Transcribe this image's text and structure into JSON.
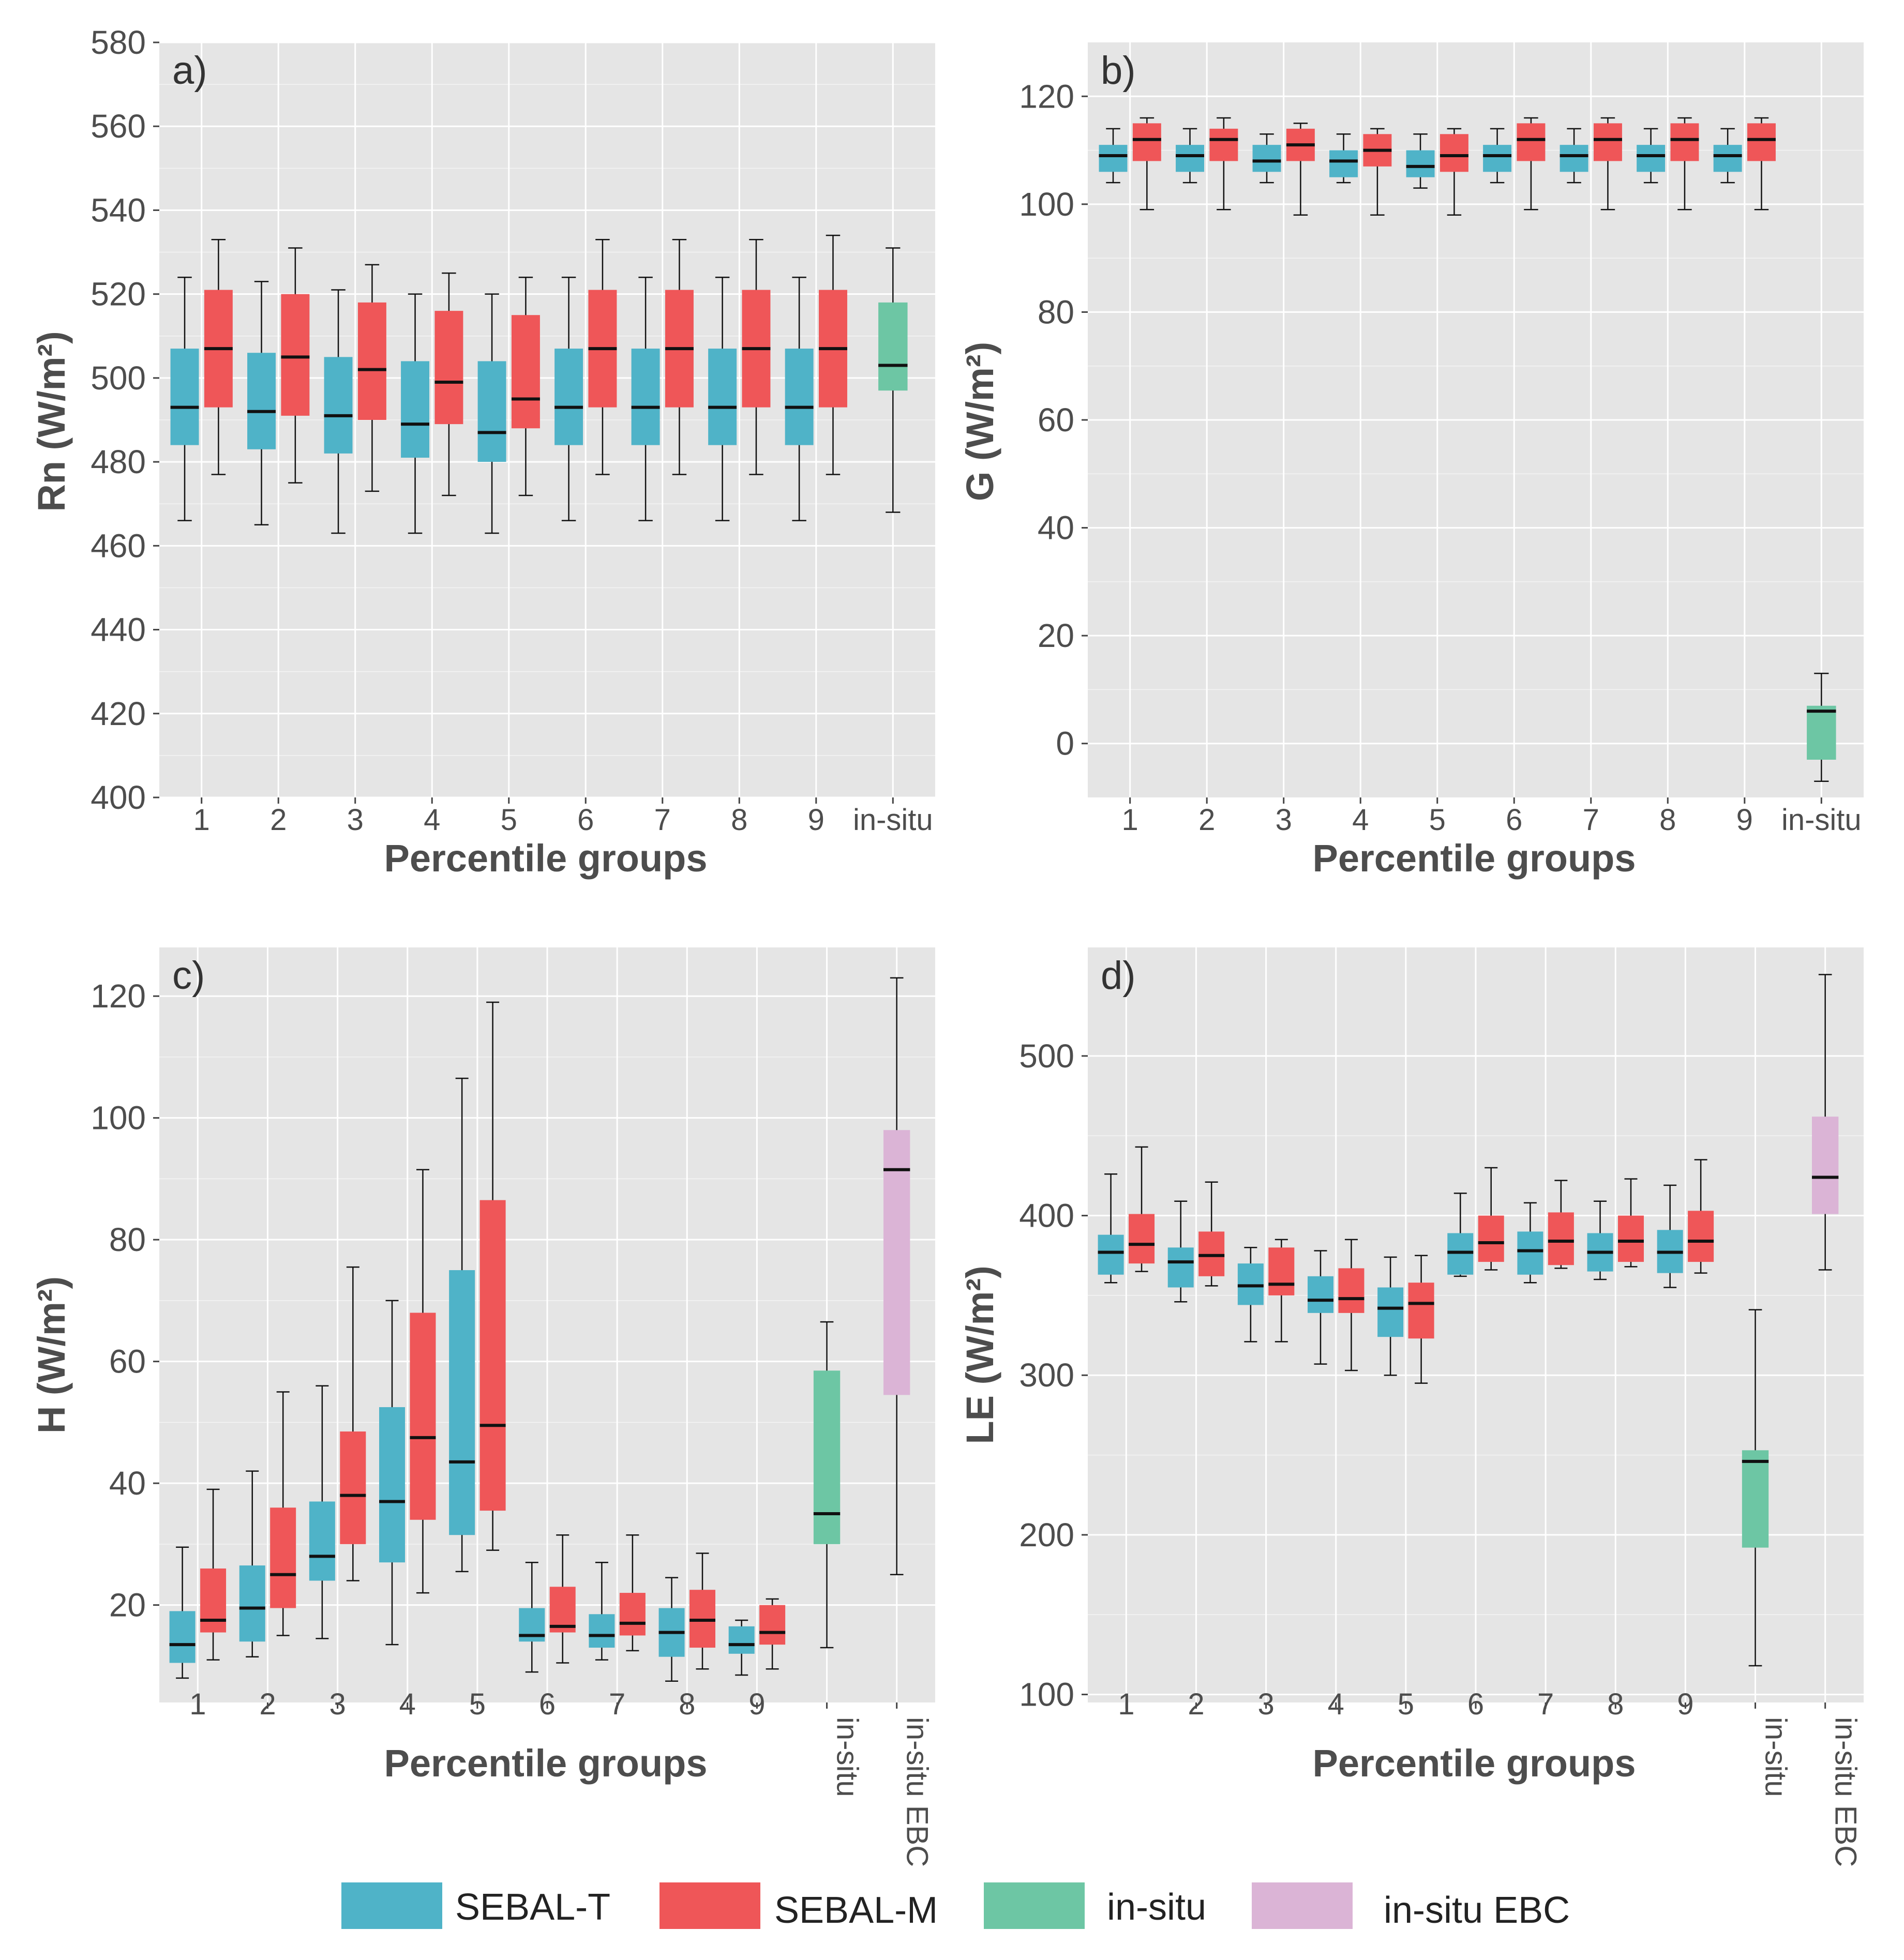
{
  "colors": {
    "SEBAL-T": "#4fb3c8",
    "SEBAL-M": "#ef5658",
    "in-situ": "#6dc6a4",
    "in-situ EBC": "#dbb4d6",
    "panel_bg": "#e5e5e5",
    "grid": "#ffffff",
    "median": "#111111",
    "whisker": "#111111"
  },
  "legend": [
    {
      "label": "SEBAL-T",
      "color_key": "SEBAL-T"
    },
    {
      "label": "SEBAL-M",
      "color_key": "SEBAL-M"
    },
    {
      "label": "in-situ",
      "color_key": "in-situ"
    },
    {
      "label": "in-situ EBC",
      "color_key": "in-situ EBC"
    }
  ],
  "chart_data": [
    {
      "type": "boxplot",
      "panel": "a)",
      "ylabel": "Rn (W/m²)",
      "xlabel": "Percentile groups",
      "ylim": [
        400,
        580
      ],
      "yticks": [
        400,
        420,
        440,
        460,
        480,
        500,
        520,
        540,
        560,
        580
      ],
      "categories": [
        "1",
        "2",
        "3",
        "4",
        "5",
        "6",
        "7",
        "8",
        "9",
        "in-situ"
      ],
      "rotated_labels": false,
      "boxes": [
        {
          "group": "1",
          "series": "SEBAL-T",
          "min": 466,
          "q1": 484,
          "median": 493,
          "q3": 507,
          "max": 524
        },
        {
          "group": "1",
          "series": "SEBAL-M",
          "min": 477,
          "q1": 493,
          "median": 507,
          "q3": 521,
          "max": 533
        },
        {
          "group": "2",
          "series": "SEBAL-T",
          "min": 465,
          "q1": 483,
          "median": 492,
          "q3": 506,
          "max": 523
        },
        {
          "group": "2",
          "series": "SEBAL-M",
          "min": 475,
          "q1": 491,
          "median": 505,
          "q3": 520,
          "max": 531
        },
        {
          "group": "3",
          "series": "SEBAL-T",
          "min": 463,
          "q1": 482,
          "median": 491,
          "q3": 505,
          "max": 521
        },
        {
          "group": "3",
          "series": "SEBAL-M",
          "min": 473,
          "q1": 490,
          "median": 502,
          "q3": 518,
          "max": 527
        },
        {
          "group": "4",
          "series": "SEBAL-T",
          "min": 463,
          "q1": 481,
          "median": 489,
          "q3": 504,
          "max": 520
        },
        {
          "group": "4",
          "series": "SEBAL-M",
          "min": 472,
          "q1": 489,
          "median": 499,
          "q3": 516,
          "max": 525
        },
        {
          "group": "5",
          "series": "SEBAL-T",
          "min": 463,
          "q1": 480,
          "median": 487,
          "q3": 504,
          "max": 520
        },
        {
          "group": "5",
          "series": "SEBAL-M",
          "min": 472,
          "q1": 488,
          "median": 495,
          "q3": 515,
          "max": 524
        },
        {
          "group": "6",
          "series": "SEBAL-T",
          "min": 466,
          "q1": 484,
          "median": 493,
          "q3": 507,
          "max": 524
        },
        {
          "group": "6",
          "series": "SEBAL-M",
          "min": 477,
          "q1": 493,
          "median": 507,
          "q3": 521,
          "max": 533
        },
        {
          "group": "7",
          "series": "SEBAL-T",
          "min": 466,
          "q1": 484,
          "median": 493,
          "q3": 507,
          "max": 524
        },
        {
          "group": "7",
          "series": "SEBAL-M",
          "min": 477,
          "q1": 493,
          "median": 507,
          "q3": 521,
          "max": 533
        },
        {
          "group": "8",
          "series": "SEBAL-T",
          "min": 466,
          "q1": 484,
          "median": 493,
          "q3": 507,
          "max": 524
        },
        {
          "group": "8",
          "series": "SEBAL-M",
          "min": 477,
          "q1": 493,
          "median": 507,
          "q3": 521,
          "max": 533
        },
        {
          "group": "9",
          "series": "SEBAL-T",
          "min": 466,
          "q1": 484,
          "median": 493,
          "q3": 507,
          "max": 524
        },
        {
          "group": "9",
          "series": "SEBAL-M",
          "min": 477,
          "q1": 493,
          "median": 507,
          "q3": 521,
          "max": 534
        },
        {
          "group": "in-situ",
          "series": "in-situ",
          "min": 468,
          "q1": 497,
          "median": 503,
          "q3": 518,
          "max": 531
        }
      ]
    },
    {
      "type": "boxplot",
      "panel": "b)",
      "ylabel": "G (W/m²)",
      "xlabel": "Percentile groups",
      "ylim": [
        -10,
        130
      ],
      "yticks": [
        0,
        20,
        40,
        60,
        80,
        100,
        120
      ],
      "categories": [
        "1",
        "2",
        "3",
        "4",
        "5",
        "6",
        "7",
        "8",
        "9",
        "in-situ"
      ],
      "rotated_labels": false,
      "boxes": [
        {
          "group": "1",
          "series": "SEBAL-T",
          "min": 104,
          "q1": 106,
          "median": 109,
          "q3": 111,
          "max": 114
        },
        {
          "group": "1",
          "series": "SEBAL-M",
          "min": 99,
          "q1": 108,
          "median": 112,
          "q3": 115,
          "max": 116
        },
        {
          "group": "2",
          "series": "SEBAL-T",
          "min": 104,
          "q1": 106,
          "median": 109,
          "q3": 111,
          "max": 114
        },
        {
          "group": "2",
          "series": "SEBAL-M",
          "min": 99,
          "q1": 108,
          "median": 112,
          "q3": 114,
          "max": 116
        },
        {
          "group": "3",
          "series": "SEBAL-T",
          "min": 104,
          "q1": 106,
          "median": 108,
          "q3": 111,
          "max": 113
        },
        {
          "group": "3",
          "series": "SEBAL-M",
          "min": 98,
          "q1": 108,
          "median": 111,
          "q3": 114,
          "max": 115
        },
        {
          "group": "4",
          "series": "SEBAL-T",
          "min": 104,
          "q1": 105,
          "median": 108,
          "q3": 110,
          "max": 113
        },
        {
          "group": "4",
          "series": "SEBAL-M",
          "min": 98,
          "q1": 107,
          "median": 110,
          "q3": 113,
          "max": 114
        },
        {
          "group": "5",
          "series": "SEBAL-T",
          "min": 103,
          "q1": 105,
          "median": 107,
          "q3": 110,
          "max": 113
        },
        {
          "group": "5",
          "series": "SEBAL-M",
          "min": 98,
          "q1": 106,
          "median": 109,
          "q3": 113,
          "max": 114
        },
        {
          "group": "6",
          "series": "SEBAL-T",
          "min": 104,
          "q1": 106,
          "median": 109,
          "q3": 111,
          "max": 114
        },
        {
          "group": "6",
          "series": "SEBAL-M",
          "min": 99,
          "q1": 108,
          "median": 112,
          "q3": 115,
          "max": 116
        },
        {
          "group": "7",
          "series": "SEBAL-T",
          "min": 104,
          "q1": 106,
          "median": 109,
          "q3": 111,
          "max": 114
        },
        {
          "group": "7",
          "series": "SEBAL-M",
          "min": 99,
          "q1": 108,
          "median": 112,
          "q3": 115,
          "max": 116
        },
        {
          "group": "8",
          "series": "SEBAL-T",
          "min": 104,
          "q1": 106,
          "median": 109,
          "q3": 111,
          "max": 114
        },
        {
          "group": "8",
          "series": "SEBAL-M",
          "min": 99,
          "q1": 108,
          "median": 112,
          "q3": 115,
          "max": 116
        },
        {
          "group": "9",
          "series": "SEBAL-T",
          "min": 104,
          "q1": 106,
          "median": 109,
          "q3": 111,
          "max": 114
        },
        {
          "group": "9",
          "series": "SEBAL-M",
          "min": 99,
          "q1": 108,
          "median": 112,
          "q3": 115,
          "max": 116
        },
        {
          "group": "in-situ",
          "series": "in-situ",
          "min": -7,
          "q1": -3,
          "median": 6,
          "q3": 7,
          "max": 13
        }
      ]
    },
    {
      "type": "boxplot",
      "panel": "c)",
      "ylabel": "H (W/m²)",
      "xlabel": "Percentile groups",
      "ylim": [
        4,
        128
      ],
      "yticks": [
        20,
        40,
        60,
        80,
        100,
        120
      ],
      "categories": [
        "1",
        "2",
        "3",
        "4",
        "5",
        "6",
        "7",
        "8",
        "9",
        "in-situ",
        "in-situ EBC"
      ],
      "rotated_labels": true,
      "boxes": [
        {
          "group": "1",
          "series": "SEBAL-T",
          "min": 8,
          "q1": 10.5,
          "median": 13.5,
          "q3": 19,
          "max": 29.5
        },
        {
          "group": "1",
          "series": "SEBAL-M",
          "min": 11,
          "q1": 15.5,
          "median": 17.5,
          "q3": 26,
          "max": 39
        },
        {
          "group": "2",
          "series": "SEBAL-T",
          "min": 11.5,
          "q1": 14,
          "median": 19.5,
          "q3": 26.5,
          "max": 42
        },
        {
          "group": "2",
          "series": "SEBAL-M",
          "min": 15,
          "q1": 19.5,
          "median": 25,
          "q3": 36,
          "max": 55
        },
        {
          "group": "3",
          "series": "SEBAL-T",
          "min": 14.5,
          "q1": 24,
          "median": 28,
          "q3": 37,
          "max": 56
        },
        {
          "group": "3",
          "series": "SEBAL-M",
          "min": 24,
          "q1": 30,
          "median": 38,
          "q3": 48.5,
          "max": 75.5
        },
        {
          "group": "4",
          "series": "SEBAL-T",
          "min": 13.5,
          "q1": 27,
          "median": 37,
          "q3": 52.5,
          "max": 70
        },
        {
          "group": "4",
          "series": "SEBAL-M",
          "min": 22,
          "q1": 34,
          "median": 47.5,
          "q3": 68,
          "max": 91.5
        },
        {
          "group": "5",
          "series": "SEBAL-T",
          "min": 25.5,
          "q1": 31.5,
          "median": 43.5,
          "q3": 75,
          "max": 106.5
        },
        {
          "group": "5",
          "series": "SEBAL-M",
          "min": 29,
          "q1": 35.5,
          "median": 49.5,
          "q3": 86.5,
          "max": 119
        },
        {
          "group": "6",
          "series": "SEBAL-T",
          "min": 9,
          "q1": 14,
          "median": 15,
          "q3": 19.5,
          "max": 27
        },
        {
          "group": "6",
          "series": "SEBAL-M",
          "min": 10.5,
          "q1": 15.5,
          "median": 16.5,
          "q3": 23,
          "max": 31.5
        },
        {
          "group": "7",
          "series": "SEBAL-T",
          "min": 11,
          "q1": 13,
          "median": 15,
          "q3": 18.5,
          "max": 27
        },
        {
          "group": "7",
          "series": "SEBAL-M",
          "min": 12.5,
          "q1": 15,
          "median": 17,
          "q3": 22,
          "max": 31.5
        },
        {
          "group": "8",
          "series": "SEBAL-T",
          "min": 7.5,
          "q1": 11.5,
          "median": 15.5,
          "q3": 19.5,
          "max": 24.5
        },
        {
          "group": "8",
          "series": "SEBAL-M",
          "min": 9.5,
          "q1": 13,
          "median": 17.5,
          "q3": 22.5,
          "max": 28.5
        },
        {
          "group": "9",
          "series": "SEBAL-T",
          "min": 8.5,
          "q1": 12,
          "median": 13.5,
          "q3": 16.5,
          "max": 17.5
        },
        {
          "group": "9",
          "series": "SEBAL-M",
          "min": 9.5,
          "q1": 13.5,
          "median": 15.5,
          "q3": 20,
          "max": 21
        },
        {
          "group": "in-situ",
          "series": "in-situ",
          "min": 13,
          "q1": 30,
          "median": 35,
          "q3": 58.5,
          "max": 66.5
        },
        {
          "group": "in-situ EBC",
          "series": "in-situ EBC",
          "min": 25,
          "q1": 54.5,
          "median": 91.5,
          "q3": 98,
          "max": 123
        }
      ]
    },
    {
      "type": "boxplot",
      "panel": "d)",
      "ylabel": "LE (W/m²)",
      "xlabel": "Percentile groups",
      "ylim": [
        95,
        568
      ],
      "yticks": [
        100,
        200,
        300,
        400,
        500
      ],
      "categories": [
        "1",
        "2",
        "3",
        "4",
        "5",
        "6",
        "7",
        "8",
        "9",
        "in-situ",
        "in-situ EBC"
      ],
      "rotated_labels": true,
      "boxes": [
        {
          "group": "1",
          "series": "SEBAL-T",
          "min": 358,
          "q1": 363,
          "median": 377,
          "q3": 388,
          "max": 426
        },
        {
          "group": "1",
          "series": "SEBAL-M",
          "min": 365,
          "q1": 370,
          "median": 382,
          "q3": 401,
          "max": 443
        },
        {
          "group": "2",
          "series": "SEBAL-T",
          "min": 346,
          "q1": 355,
          "median": 371,
          "q3": 380,
          "max": 409
        },
        {
          "group": "2",
          "series": "SEBAL-M",
          "min": 356,
          "q1": 362,
          "median": 375,
          "q3": 390,
          "max": 421
        },
        {
          "group": "3",
          "series": "SEBAL-T",
          "min": 321,
          "q1": 344,
          "median": 356,
          "q3": 370,
          "max": 380
        },
        {
          "group": "3",
          "series": "SEBAL-M",
          "min": 321,
          "q1": 350,
          "median": 357,
          "q3": 380,
          "max": 385
        },
        {
          "group": "4",
          "series": "SEBAL-T",
          "min": 307,
          "q1": 339,
          "median": 347,
          "q3": 362,
          "max": 378
        },
        {
          "group": "4",
          "series": "SEBAL-M",
          "min": 303,
          "q1": 339,
          "median": 348,
          "q3": 367,
          "max": 385
        },
        {
          "group": "5",
          "series": "SEBAL-T",
          "min": 300,
          "q1": 324,
          "median": 342,
          "q3": 355,
          "max": 374
        },
        {
          "group": "5",
          "series": "SEBAL-M",
          "min": 295,
          "q1": 323,
          "median": 345,
          "q3": 358,
          "max": 375
        },
        {
          "group": "6",
          "series": "SEBAL-T",
          "min": 362,
          "q1": 363,
          "median": 377,
          "q3": 389,
          "max": 414
        },
        {
          "group": "6",
          "series": "SEBAL-M",
          "min": 366,
          "q1": 371,
          "median": 383,
          "q3": 400,
          "max": 430
        },
        {
          "group": "7",
          "series": "SEBAL-T",
          "min": 358,
          "q1": 363,
          "median": 378,
          "q3": 390,
          "max": 408
        },
        {
          "group": "7",
          "series": "SEBAL-M",
          "min": 367,
          "q1": 369,
          "median": 384,
          "q3": 402,
          "max": 422
        },
        {
          "group": "8",
          "series": "SEBAL-T",
          "min": 360,
          "q1": 365,
          "median": 377,
          "q3": 389,
          "max": 409
        },
        {
          "group": "8",
          "series": "SEBAL-M",
          "min": 368,
          "q1": 371,
          "median": 384,
          "q3": 400,
          "max": 423
        },
        {
          "group": "9",
          "series": "SEBAL-T",
          "min": 355,
          "q1": 364,
          "median": 377,
          "q3": 391,
          "max": 419
        },
        {
          "group": "9",
          "series": "SEBAL-M",
          "min": 364,
          "q1": 371,
          "median": 384,
          "q3": 403,
          "max": 435
        },
        {
          "group": "in-situ",
          "series": "in-situ",
          "min": 118,
          "q1": 192,
          "median": 246,
          "q3": 253,
          "max": 341
        },
        {
          "group": "in-situ EBC",
          "series": "in-situ EBC",
          "min": 366,
          "q1": 401,
          "median": 424,
          "q3": 462,
          "max": 551
        }
      ]
    }
  ]
}
